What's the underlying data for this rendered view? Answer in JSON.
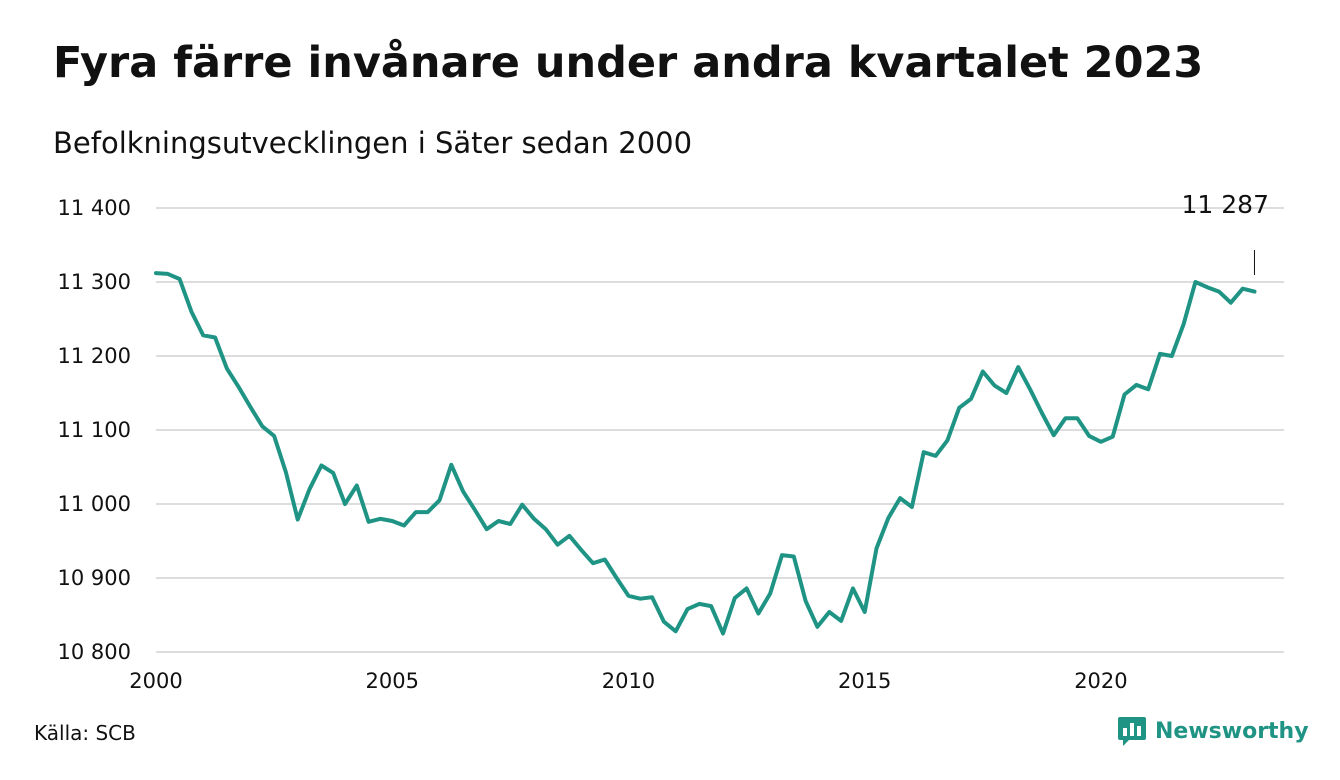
{
  "title": "Fyra färre invånare under andra kvartalet 2023",
  "subtitle": "Befolkningsutvecklingen i Säter sedan 2000",
  "source": "Källa: SCB",
  "brand": {
    "name": "Newsworthy",
    "icon": "bar-chart-logo-icon"
  },
  "colors": {
    "line": "#1f9485",
    "grid": "#dddddd",
    "brand": "#1f9485",
    "text": "#111111"
  },
  "chart_data": {
    "type": "line",
    "title": "Fyra färre invånare under andra kvartalet 2023",
    "subtitle": "Befolkningsutvecklingen i Säter sedan 2000",
    "xlabel": "",
    "ylabel": "",
    "xlim": [
      2000.0,
      2023.875
    ],
    "ylim": [
      10800,
      11400
    ],
    "grid": "horizontal",
    "legend": "none",
    "x_ticks": [
      {
        "value": 2000,
        "label": "2000"
      },
      {
        "value": 2005,
        "label": "2005"
      },
      {
        "value": 2010,
        "label": "2010"
      },
      {
        "value": 2015,
        "label": "2015"
      },
      {
        "value": 2020,
        "label": "2020"
      }
    ],
    "y_ticks": [
      {
        "value": 10800,
        "label": "10 800"
      },
      {
        "value": 10900,
        "label": "10 900"
      },
      {
        "value": 11000,
        "label": "11 000"
      },
      {
        "value": 11100,
        "label": "11 100"
      },
      {
        "value": 11200,
        "label": "11 200"
      },
      {
        "value": 11300,
        "label": "11 300"
      },
      {
        "value": 11400,
        "label": "11 400"
      }
    ],
    "annotation": {
      "label": "11 287",
      "x": 2023.25,
      "y": 11287
    },
    "series": [
      {
        "x": [
          2000.0,
          2000.25,
          2000.5,
          2000.75,
          2001.0,
          2001.25,
          2001.5,
          2001.75,
          2002.0,
          2002.25,
          2002.5,
          2002.75,
          2003.0,
          2003.25,
          2003.5,
          2003.75,
          2004.0,
          2004.25,
          2004.5,
          2004.75,
          2005.0,
          2005.25,
          2005.5,
          2005.75,
          2006.0,
          2006.25,
          2006.5,
          2006.75,
          2007.0,
          2007.25,
          2007.5,
          2007.75,
          2008.0,
          2008.25,
          2008.5,
          2008.75,
          2009.0,
          2009.25,
          2009.5,
          2009.75,
          2010.0,
          2010.25,
          2010.5,
          2010.75,
          2011.0,
          2011.25,
          2011.5,
          2011.75,
          2012.0,
          2012.25,
          2012.5,
          2012.75,
          2013.0,
          2013.25,
          2013.5,
          2013.75,
          2014.0,
          2014.25,
          2014.5,
          2014.75,
          2015.0,
          2015.25,
          2015.5,
          2015.75,
          2016.0,
          2016.25,
          2016.5,
          2016.75,
          2017.0,
          2017.25,
          2017.5,
          2017.75,
          2018.0,
          2018.25,
          2018.5,
          2018.75,
          2019.0,
          2019.25,
          2019.5,
          2019.75,
          2020.0,
          2020.25,
          2020.5,
          2020.75,
          2021.0,
          2021.25,
          2021.5,
          2021.75,
          2022.0,
          2022.25,
          2022.5,
          2022.75,
          2023.0,
          2023.25
        ],
        "values": [
          11312,
          11311,
          11304,
          11260,
          11228,
          11225,
          11183,
          11158,
          11131,
          11105,
          11092,
          11043,
          10979,
          11020,
          11052,
          11042,
          11000,
          11025,
          10976,
          10980,
          10977,
          10971,
          10989,
          10989,
          11005,
          11053,
          11017,
          10992,
          10966,
          10977,
          10973,
          10999,
          10980,
          10966,
          10945,
          10957,
          10938,
          10920,
          10925,
          10900,
          10876,
          10872,
          10874,
          10841,
          10828,
          10858,
          10865,
          10862,
          10825,
          10873,
          10886,
          10852,
          10879,
          10931,
          10929,
          10869,
          10834,
          10854,
          10842,
          10886,
          10854,
          10940,
          10981,
          11008,
          10996,
          11070,
          11065,
          11086,
          11130,
          11142,
          11179,
          11160,
          11150,
          11185,
          11155,
          11123,
          11093,
          11116,
          11116,
          11092,
          11084,
          11091,
          11148,
          11161,
          11155,
          11203,
          11200,
          11243,
          11300,
          11293,
          11287,
          11272,
          11291,
          11287
        ]
      }
    ]
  }
}
